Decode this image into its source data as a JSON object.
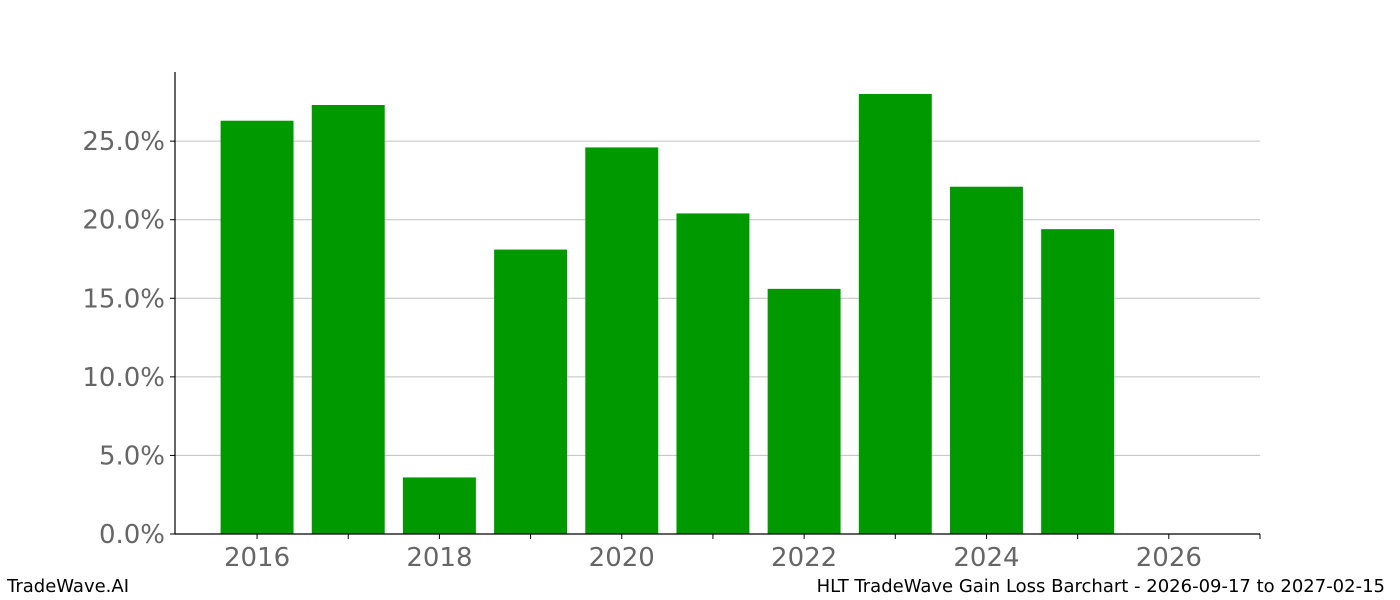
{
  "chart_data": {
    "type": "bar",
    "x": [
      2016,
      2017,
      2018,
      2019,
      2020,
      2021,
      2022,
      2023,
      2024,
      2025
    ],
    "values": [
      26.3,
      27.3,
      3.6,
      18.1,
      24.6,
      20.4,
      15.6,
      28.0,
      22.1,
      19.4
    ],
    "value_unit": "%",
    "xlim": [
      2015.1,
      2027.0
    ],
    "ylim": [
      0,
      29.4
    ],
    "x_ticks": [
      2016,
      2018,
      2020,
      2022,
      2024,
      2026
    ],
    "y_ticks": [
      0,
      5,
      10,
      15,
      20,
      25
    ],
    "y_tick_labels": [
      "0.0%",
      "5.0%",
      "10.0%",
      "15.0%",
      "20.0%",
      "25.0%"
    ],
    "grid": "horizontal",
    "bar_color": "#009900",
    "title": "",
    "xlabel": "",
    "ylabel": ""
  },
  "footer": {
    "brand": "TradeWave.AI",
    "caption": "HLT TradeWave Gain Loss Barchart - 2026-09-17 to 2027-02-15"
  }
}
